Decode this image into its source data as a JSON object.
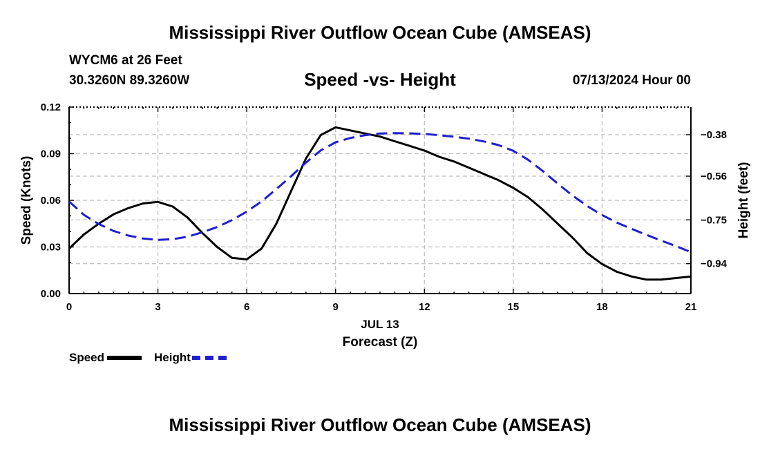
{
  "header": {
    "title": "Mississippi River Outflow Ocean Cube (AMSEAS)",
    "station": "WYCM6 at 26 Feet",
    "location": "30.3260N  89.3260W",
    "subtitle": "Speed -vs- Height",
    "datetime": "07/13/2024 Hour 00"
  },
  "footer": {
    "title": "Mississippi River Outflow Ocean Cube (AMSEAS)"
  },
  "legend": {
    "speed_label": "Speed",
    "height_label": "Height"
  },
  "colors": {
    "speed": "#000000",
    "height": "#1f1fd0",
    "grid": "#bdbdbd"
  },
  "chart_data": {
    "type": "line",
    "title": "Speed -vs- Height",
    "xlabel": "Forecast (Z)",
    "xlabel_date": "JUL 13",
    "ylabel": "Speed (Knots)",
    "y2label": "Height (feet)",
    "xlim": [
      0,
      21
    ],
    "ylim": [
      0,
      0.12
    ],
    "y2lim": [
      -1.07,
      -0.26
    ],
    "xticks": [
      0,
      3,
      6,
      9,
      12,
      15,
      18,
      21
    ],
    "yticks": [
      0.0,
      0.03,
      0.06,
      0.09,
      0.12
    ],
    "ytick_labels": [
      "0.00",
      "0.03",
      "0.06",
      "0.09",
      "0.12"
    ],
    "y2ticks": [
      -0.94,
      -0.75,
      -0.56,
      -0.38
    ],
    "y2tick_labels": [
      "−0.94",
      "−0.75",
      "−0.56",
      "−0.38"
    ],
    "legend_position": "bottom-left",
    "grid": true,
    "series": [
      {
        "name": "Speed",
        "axis": "left",
        "style": "solid",
        "x": [
          0,
          0.5,
          1,
          1.5,
          2,
          2.5,
          3,
          3.5,
          4,
          4.5,
          5,
          5.5,
          6,
          6.5,
          7,
          7.5,
          8,
          8.5,
          9,
          9.5,
          10,
          10.5,
          11,
          11.5,
          12,
          12.5,
          13,
          13.5,
          14,
          14.5,
          15,
          15.5,
          16,
          16.5,
          17,
          17.5,
          18,
          18.5,
          19,
          19.5,
          20,
          20.5,
          21
        ],
        "values": [
          0.029,
          0.038,
          0.045,
          0.051,
          0.055,
          0.058,
          0.059,
          0.056,
          0.049,
          0.039,
          0.03,
          0.023,
          0.022,
          0.029,
          0.045,
          0.066,
          0.087,
          0.102,
          0.107,
          0.105,
          0.103,
          0.101,
          0.098,
          0.095,
          0.092,
          0.088,
          0.085,
          0.081,
          0.077,
          0.073,
          0.068,
          0.062,
          0.054,
          0.045,
          0.036,
          0.026,
          0.019,
          0.014,
          0.011,
          0.009,
          0.009,
          0.01,
          0.011
        ]
      },
      {
        "name": "Height",
        "axis": "right",
        "style": "dashed",
        "x": [
          0,
          0.5,
          1,
          1.5,
          2,
          2.5,
          3,
          3.5,
          4,
          4.5,
          5,
          5.5,
          6,
          6.5,
          7,
          7.5,
          8,
          8.5,
          9,
          9.5,
          10,
          10.5,
          11,
          11.5,
          12,
          12.5,
          13,
          13.5,
          14,
          14.5,
          15,
          15.5,
          16,
          16.5,
          17,
          17.5,
          18,
          18.5,
          19,
          19.5,
          20,
          20.5,
          21
        ],
        "values": [
          -0.67,
          -0.728,
          -0.768,
          -0.798,
          -0.818,
          -0.831,
          -0.837,
          -0.834,
          -0.823,
          -0.804,
          -0.781,
          -0.751,
          -0.714,
          -0.67,
          -0.616,
          -0.56,
          -0.501,
          -0.448,
          -0.413,
          -0.394,
          -0.382,
          -0.375,
          -0.373,
          -0.374,
          -0.377,
          -0.382,
          -0.389,
          -0.397,
          -0.409,
          -0.425,
          -0.45,
          -0.489,
          -0.538,
          -0.592,
          -0.644,
          -0.69,
          -0.729,
          -0.762,
          -0.789,
          -0.815,
          -0.84,
          -0.864,
          -0.89
        ]
      }
    ]
  }
}
